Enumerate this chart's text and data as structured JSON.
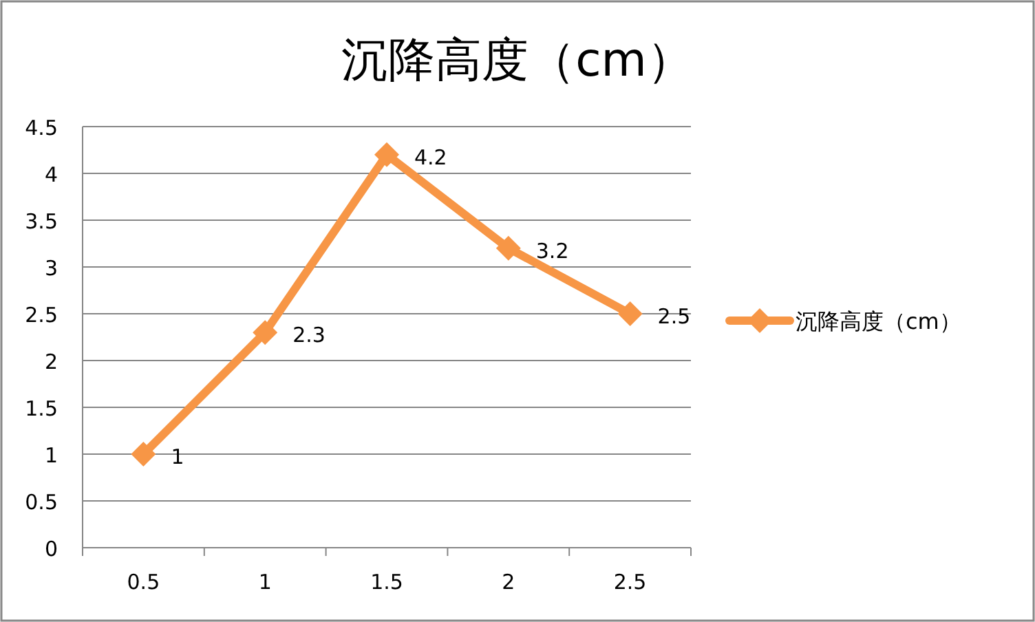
{
  "chart_data": {
    "type": "line",
    "title": "沉降高度（cm）",
    "categories": [
      "0.5",
      "1",
      "1.5",
      "2",
      "2.5"
    ],
    "series": [
      {
        "name": "沉降高度（cm）",
        "color": "#f79646",
        "values": [
          1,
          2.3,
          4.2,
          3.2,
          2.5
        ]
      }
    ],
    "ylim": [
      0,
      4.5
    ],
    "yticks": [
      0,
      0.5,
      1,
      1.5,
      2,
      2.5,
      3,
      3.5,
      4,
      4.5
    ],
    "grid": "y",
    "legend": "right",
    "marker": "diamond",
    "line_style": "solid",
    "data_labels": true
  }
}
